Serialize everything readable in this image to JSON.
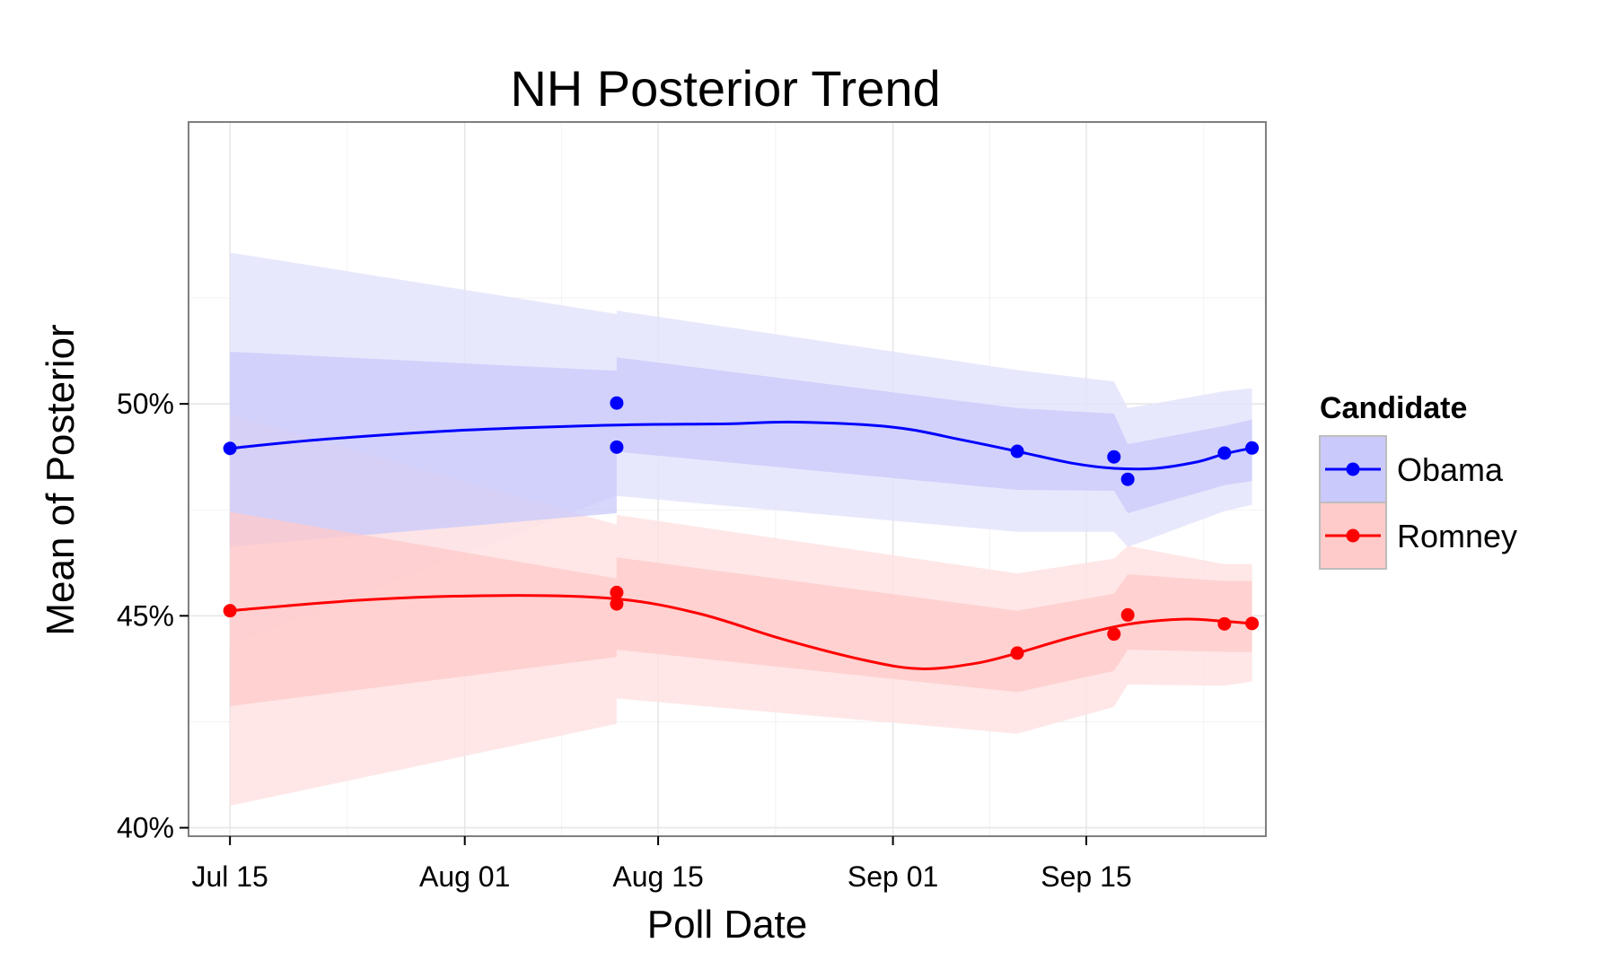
{
  "chart_data": {
    "type": "line",
    "title": "NH  Posterior Trend",
    "xlabel": "Poll Date",
    "ylabel": "Mean of Posterior",
    "x_range": [
      "2012-07-12",
      "2012-09-28"
    ],
    "y_range": [
      0.398,
      0.5665
    ],
    "x_ticks": [
      {
        "date": "2012-07-15",
        "label": "Jul 15"
      },
      {
        "date": "2012-08-01",
        "label": "Aug 01"
      },
      {
        "date": "2012-08-15",
        "label": "Aug 15"
      },
      {
        "date": "2012-09-01",
        "label": "Sep 01"
      },
      {
        "date": "2012-09-15",
        "label": "Sep 15"
      }
    ],
    "y_ticks": [
      {
        "value": 0.4,
        "label": "40%"
      },
      {
        "value": 0.45,
        "label": "45%"
      },
      {
        "value": 0.5,
        "label": "50%"
      }
    ],
    "grid": true,
    "legend": {
      "title": "Candidate",
      "position": "right"
    },
    "series": [
      {
        "name": "Obama",
        "color": "#0000ff",
        "band_inner_color": "#c9c9fb",
        "band_outer_color": "#e4e4fd",
        "points": [
          {
            "date": "2012-07-15",
            "value": 0.4895
          },
          {
            "date": "2012-08-12",
            "value": 0.5002
          },
          {
            "date": "2012-08-12",
            "value": 0.4898
          },
          {
            "date": "2012-09-10",
            "value": 0.4888
          },
          {
            "date": "2012-09-17",
            "value": 0.4875
          },
          {
            "date": "2012-09-18",
            "value": 0.4822
          },
          {
            "date": "2012-09-25",
            "value": 0.4884
          },
          {
            "date": "2012-09-27",
            "value": 0.4896
          }
        ],
        "smooth": [
          {
            "date": "2012-07-15",
            "value": 0.4895
          },
          {
            "date": "2012-07-22",
            "value": 0.4917
          },
          {
            "date": "2012-08-01",
            "value": 0.4938
          },
          {
            "date": "2012-08-12",
            "value": 0.495
          },
          {
            "date": "2012-08-20",
            "value": 0.4953
          },
          {
            "date": "2012-08-25",
            "value": 0.4957
          },
          {
            "date": "2012-09-01",
            "value": 0.4945
          },
          {
            "date": "2012-09-06",
            "value": 0.4915
          },
          {
            "date": "2012-09-10",
            "value": 0.4888
          },
          {
            "date": "2012-09-14",
            "value": 0.486
          },
          {
            "date": "2012-09-17",
            "value": 0.4848
          },
          {
            "date": "2012-09-20",
            "value": 0.4848
          },
          {
            "date": "2012-09-23",
            "value": 0.4863
          },
          {
            "date": "2012-09-25",
            "value": 0.4882
          },
          {
            "date": "2012-09-27",
            "value": 0.4896
          }
        ],
        "band_inner": [
          {
            "date": "2012-07-15",
            "upper": 0.5123,
            "lower": 0.4663
          },
          {
            "date": "2012-08-12",
            "upper": 0.5078,
            "lower": 0.4742
          },
          {
            "date": "2012-08-12",
            "upper": 0.511,
            "lower": 0.4887
          },
          {
            "date": "2012-09-10",
            "upper": 0.499,
            "lower": 0.4797
          },
          {
            "date": "2012-09-17",
            "upper": 0.4977,
            "lower": 0.4795
          },
          {
            "date": "2012-09-18",
            "upper": 0.4905,
            "lower": 0.4742
          },
          {
            "date": "2012-09-25",
            "upper": 0.4948,
            "lower": 0.4808
          },
          {
            "date": "2012-09-27",
            "upper": 0.4963,
            "lower": 0.4818
          }
        ],
        "band_outer": [
          {
            "date": "2012-07-15",
            "upper": 0.5357,
            "lower": 0.4432
          },
          {
            "date": "2012-08-12",
            "upper": 0.5212,
            "lower": 0.4784
          },
          {
            "date": "2012-08-12",
            "upper": 0.522,
            "lower": 0.4783
          },
          {
            "date": "2012-09-10",
            "upper": 0.508,
            "lower": 0.4698
          },
          {
            "date": "2012-09-17",
            "upper": 0.5053,
            "lower": 0.4698
          },
          {
            "date": "2012-09-18",
            "upper": 0.499,
            "lower": 0.4662
          },
          {
            "date": "2012-09-25",
            "upper": 0.503,
            "lower": 0.4747
          },
          {
            "date": "2012-09-27",
            "upper": 0.5037,
            "lower": 0.4762
          }
        ]
      },
      {
        "name": "Romney",
        "color": "#ff0000",
        "band_inner_color": "#ffcaca",
        "band_outer_color": "#ffe3e3",
        "points": [
          {
            "date": "2012-07-15",
            "value": 0.4512
          },
          {
            "date": "2012-08-12",
            "value": 0.4555
          },
          {
            "date": "2012-08-12",
            "value": 0.4528
          },
          {
            "date": "2012-09-10",
            "value": 0.4412
          },
          {
            "date": "2012-09-17",
            "value": 0.4457
          },
          {
            "date": "2012-09-18",
            "value": 0.4502
          },
          {
            "date": "2012-09-25",
            "value": 0.4481
          },
          {
            "date": "2012-09-27",
            "value": 0.4482
          }
        ],
        "smooth": [
          {
            "date": "2012-07-15",
            "value": 0.4512
          },
          {
            "date": "2012-07-25",
            "value": 0.4538
          },
          {
            "date": "2012-08-04",
            "value": 0.4548
          },
          {
            "date": "2012-08-12",
            "value": 0.454
          },
          {
            "date": "2012-08-18",
            "value": 0.4505
          },
          {
            "date": "2012-08-24",
            "value": 0.4445
          },
          {
            "date": "2012-08-30",
            "value": 0.4395
          },
          {
            "date": "2012-09-03",
            "value": 0.4375
          },
          {
            "date": "2012-09-07",
            "value": 0.4388
          },
          {
            "date": "2012-09-10",
            "value": 0.4412
          },
          {
            "date": "2012-09-14",
            "value": 0.445
          },
          {
            "date": "2012-09-18",
            "value": 0.448
          },
          {
            "date": "2012-09-22",
            "value": 0.4492
          },
          {
            "date": "2012-09-25",
            "value": 0.4487
          },
          {
            "date": "2012-09-27",
            "value": 0.4482
          }
        ],
        "band_inner": [
          {
            "date": "2012-07-15",
            "upper": 0.4745,
            "lower": 0.4287
          },
          {
            "date": "2012-08-12",
            "upper": 0.4588,
            "lower": 0.4403
          },
          {
            "date": "2012-08-12",
            "upper": 0.4638,
            "lower": 0.442
          },
          {
            "date": "2012-09-10",
            "upper": 0.4512,
            "lower": 0.432
          },
          {
            "date": "2012-09-17",
            "upper": 0.4552,
            "lower": 0.437
          },
          {
            "date": "2012-09-18",
            "upper": 0.4598,
            "lower": 0.442
          },
          {
            "date": "2012-09-25",
            "upper": 0.4582,
            "lower": 0.4415
          },
          {
            "date": "2012-09-27",
            "upper": 0.4582,
            "lower": 0.4415
          }
        ],
        "band_outer": [
          {
            "date": "2012-07-15",
            "upper": 0.4975,
            "lower": 0.4052
          },
          {
            "date": "2012-08-12",
            "upper": 0.4715,
            "lower": 0.4245
          },
          {
            "date": "2012-08-12",
            "upper": 0.4738,
            "lower": 0.4305
          },
          {
            "date": "2012-09-10",
            "upper": 0.46,
            "lower": 0.4222
          },
          {
            "date": "2012-09-17",
            "upper": 0.4635,
            "lower": 0.4285
          },
          {
            "date": "2012-09-18",
            "upper": 0.4665,
            "lower": 0.4338
          },
          {
            "date": "2012-09-25",
            "upper": 0.4622,
            "lower": 0.4335
          },
          {
            "date": "2012-09-27",
            "upper": 0.4622,
            "lower": 0.4345
          }
        ]
      }
    ]
  }
}
